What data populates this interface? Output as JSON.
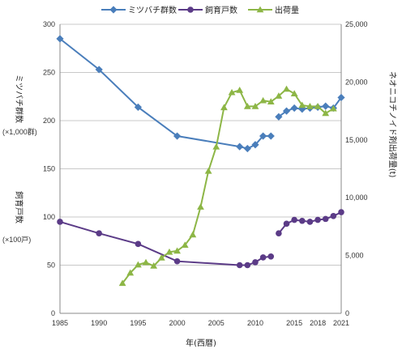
{
  "chart_data": {
    "type": "line",
    "x_label": "年(西暦)",
    "x_ticks": [
      1985,
      1990,
      1995,
      2000,
      2005,
      2010,
      2015,
      2018,
      2021
    ],
    "x_range": [
      1985,
      2021
    ],
    "left_axis": {
      "ticks": [
        0,
        50,
        100,
        150,
        200,
        250,
        300
      ],
      "range": [
        0,
        300
      ],
      "label_top": "ミツバチ群数",
      "unit_top": "(×1,000群)",
      "label_bottom": "飼育戸数",
      "unit_bottom": "(×100戸)"
    },
    "right_axis": {
      "ticks": [
        0,
        5000,
        10000,
        15000,
        20000,
        25000
      ],
      "tick_labels": [
        "0",
        "5,000",
        "10,000",
        "15,000",
        "20,000",
        "25,000"
      ],
      "range": [
        0,
        25000
      ],
      "label": "ネオニコチノイド剤出荷量(t)"
    },
    "grid": "horizontal",
    "legend_position": "top",
    "series": [
      {
        "name": "ミツバチ群数",
        "axis": "left",
        "color": "#4a7ebb",
        "marker": "diamond",
        "segments": [
          [
            [
              1985,
              285
            ],
            [
              1990,
              253
            ],
            [
              1995,
              214
            ],
            [
              2000,
              184
            ],
            [
              2008,
              173
            ],
            [
              2009,
              171
            ],
            [
              2010,
              175
            ],
            [
              2011,
              184
            ],
            [
              2012,
              184
            ]
          ],
          [
            [
              2013,
              204
            ],
            [
              2014,
              210
            ],
            [
              2015,
              213
            ],
            [
              2016,
              212
            ],
            [
              2017,
              213
            ],
            [
              2018,
              214
            ],
            [
              2019,
              215
            ],
            [
              2020,
              213
            ],
            [
              2021,
              224
            ]
          ]
        ]
      },
      {
        "name": "飼育戸数",
        "axis": "left",
        "color": "#5b3b87",
        "marker": "circle",
        "segments": [
          [
            [
              1985,
              95
            ],
            [
              1990,
              83
            ],
            [
              1995,
              72
            ],
            [
              2000,
              54
            ],
            [
              2008,
              50
            ],
            [
              2009,
              50
            ],
            [
              2010,
              53
            ],
            [
              2011,
              58
            ],
            [
              2012,
              59
            ]
          ],
          [
            [
              2013,
              83
            ],
            [
              2014,
              93
            ],
            [
              2015,
              97
            ],
            [
              2016,
              96
            ],
            [
              2017,
              95
            ],
            [
              2018,
              97
            ],
            [
              2019,
              98
            ],
            [
              2020,
              101
            ],
            [
              2021,
              105
            ]
          ]
        ]
      },
      {
        "name": "出荷量",
        "axis": "right",
        "color": "#8db646",
        "marker": "triangle",
        "segments": [
          [
            [
              1993,
              2600
            ],
            [
              1994,
              3500
            ],
            [
              1995,
              4200
            ],
            [
              1996,
              4400
            ],
            [
              1997,
              4100
            ],
            [
              1998,
              4800
            ],
            [
              1999,
              5300
            ],
            [
              2000,
              5400
            ],
            [
              2001,
              5900
            ],
            [
              2002,
              6800
            ],
            [
              2003,
              9200
            ],
            [
              2004,
              12300
            ],
            [
              2005,
              14400
            ],
            [
              2006,
              17800
            ],
            [
              2007,
              19100
            ],
            [
              2008,
              19300
            ],
            [
              2009,
              17900
            ],
            [
              2010,
              17900
            ],
            [
              2011,
              18400
            ],
            [
              2012,
              18300
            ],
            [
              2013,
              18800
            ],
            [
              2014,
              19400
            ],
            [
              2015,
              19000
            ],
            [
              2016,
              18000
            ],
            [
              2017,
              17900
            ],
            [
              2018,
              17900
            ],
            [
              2019,
              17300
            ],
            [
              2020,
              17700
            ]
          ]
        ]
      }
    ]
  }
}
